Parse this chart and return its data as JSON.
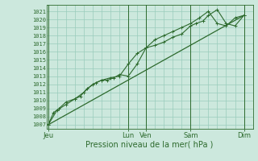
{
  "title": "",
  "xlabel": "Pression niveau de la mer( hPa )",
  "bg_color": "#cce8dd",
  "plot_bg_color": "#cce8dd",
  "grid_color": "#99ccbb",
  "line_color": "#2d6a2d",
  "ylim_min": 1006.5,
  "ylim_max": 1021.8,
  "yticks": [
    1007,
    1008,
    1009,
    1010,
    1011,
    1012,
    1013,
    1014,
    1015,
    1016,
    1017,
    1018,
    1019,
    1020,
    1021
  ],
  "day_labels": [
    "Jeu",
    "Lun",
    "Ven",
    "Sam",
    "Dim"
  ],
  "day_positions": [
    0,
    4.5,
    5.5,
    8.0,
    11.0
  ],
  "xlim_min": -0.1,
  "xlim_max": 11.5,
  "series1_x": [
    0,
    0.3,
    0.6,
    1.0,
    1.5,
    1.8,
    2.2,
    2.7,
    3.0,
    3.3,
    3.7,
    4.0,
    4.5,
    5.0,
    5.5,
    6.0,
    6.5,
    7.0,
    7.5,
    8.0,
    8.3,
    8.7,
    9.0,
    9.5,
    10.0,
    10.5,
    11.0
  ],
  "series1_y": [
    1007.0,
    1008.5,
    1009.0,
    1009.8,
    1010.2,
    1010.5,
    1011.5,
    1012.2,
    1012.5,
    1012.5,
    1012.8,
    1013.2,
    1013.0,
    1014.5,
    1016.5,
    1016.8,
    1017.2,
    1017.8,
    1018.2,
    1019.2,
    1019.5,
    1019.8,
    1020.5,
    1021.2,
    1019.5,
    1019.2,
    1020.5
  ],
  "series2_x": [
    0,
    0.5,
    1.0,
    1.5,
    2.0,
    2.5,
    3.0,
    3.5,
    4.0,
    4.5,
    5.0,
    5.5,
    6.0,
    6.5,
    7.0,
    7.5,
    8.0,
    8.5,
    9.0,
    9.5,
    10.0,
    10.5,
    11.0
  ],
  "series2_y": [
    1007.0,
    1008.8,
    1009.5,
    1010.2,
    1011.0,
    1012.0,
    1012.5,
    1012.8,
    1013.0,
    1014.5,
    1015.8,
    1016.5,
    1017.5,
    1018.0,
    1018.5,
    1019.0,
    1019.5,
    1020.2,
    1021.0,
    1019.5,
    1019.2,
    1020.2,
    1020.5
  ],
  "trend_x": [
    0,
    11.0
  ],
  "trend_y": [
    1007.0,
    1020.5
  ],
  "vlines_x": [
    0,
    4.5,
    5.5,
    8.0,
    11.0
  ],
  "xlabel_fontsize": 7,
  "ytick_fontsize": 5,
  "xtick_fontsize": 6
}
